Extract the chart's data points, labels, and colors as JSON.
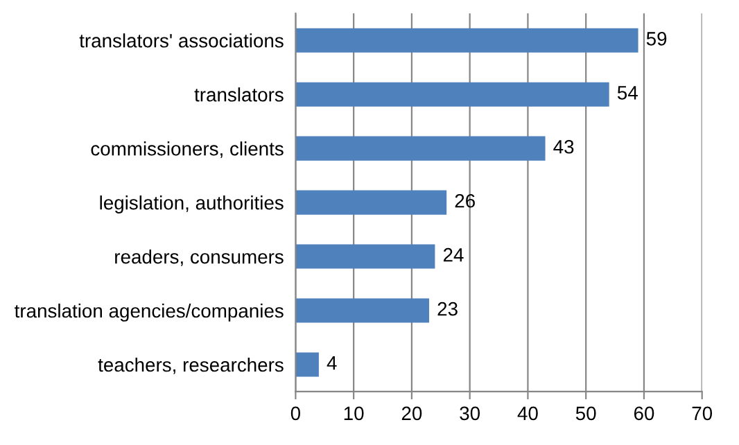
{
  "chart_data": {
    "type": "bar",
    "orientation": "horizontal",
    "categories": [
      "translators' associations",
      "translators",
      "commissioners, clients",
      "legislation, authorities",
      "readers, consumers",
      "translation agencies/companies",
      "teachers, researchers"
    ],
    "values": [
      59,
      54,
      43,
      26,
      24,
      23,
      4
    ],
    "color": "#4f81bd",
    "xlim": [
      0,
      70
    ],
    "xticks": [
      0,
      10,
      20,
      30,
      40,
      50,
      60,
      70
    ],
    "grid": "x",
    "data_labels": true
  }
}
